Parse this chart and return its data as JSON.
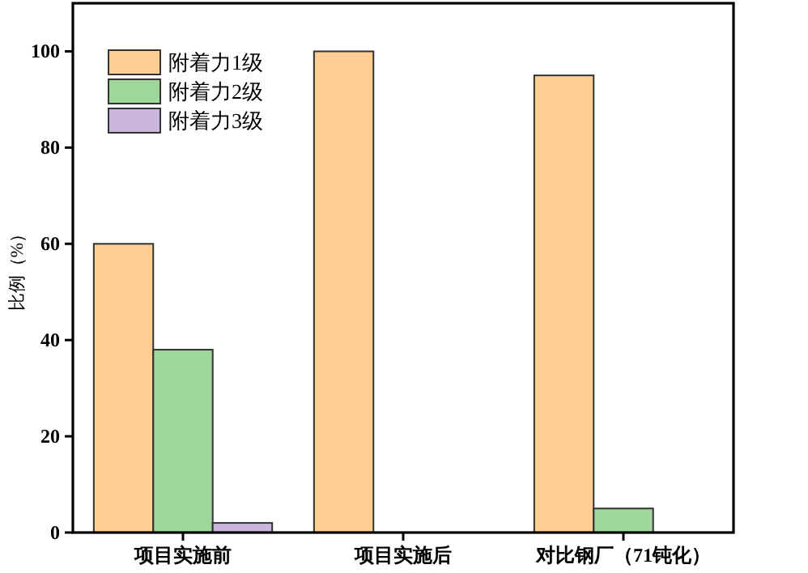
{
  "chart_data": {
    "type": "bar",
    "ylabel": "比例（%）",
    "categories": [
      "项目实施前",
      "项目实施后",
      "对比钢厂（71钝化）"
    ],
    "series": [
      {
        "name": "附着力1级",
        "color": "#fdcd93",
        "values": [
          60,
          100,
          95
        ]
      },
      {
        "name": "附着力2级",
        "color": "#9fd69c",
        "values": [
          38,
          null,
          5
        ]
      },
      {
        "name": "附着力3级",
        "color": "#cbb7dc",
        "values": [
          2,
          null,
          null
        ]
      }
    ],
    "ylim": [
      0,
      110
    ],
    "yticks": [
      0,
      20,
      40,
      60,
      80,
      100
    ],
    "grid": false,
    "legend": "top left"
  }
}
